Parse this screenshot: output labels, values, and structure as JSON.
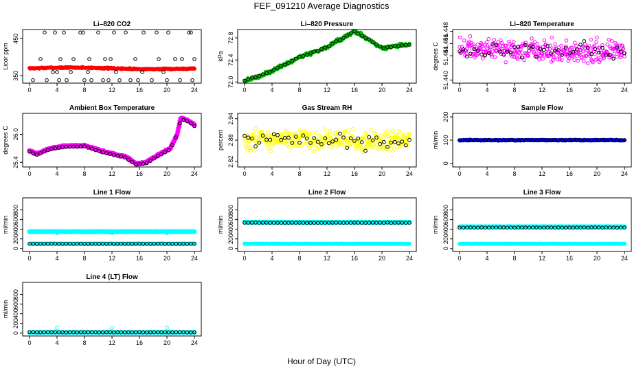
{
  "figure": {
    "title": "FEF_091210  Average Diagnostics",
    "xlabel": "Hour of Day (UTC)"
  },
  "chart_data": [
    {
      "type": "scatter",
      "title": "Li–820 CO2",
      "ylabel": "Licor ppm",
      "xlim": [
        0,
        24
      ],
      "xticks": [
        "0",
        "4",
        "8",
        "12",
        "16",
        "20",
        "24"
      ],
      "ylim": [
        330,
        475
      ],
      "yticks": [
        {
          "v": 350,
          "t": "350"
        },
        {
          "v": 450,
          "t": "450"
        }
      ],
      "series": [
        {
          "kind": "band",
          "color": "#ff0000",
          "base": 370,
          "amp": 2,
          "noise": 1.5,
          "n": 240,
          "size": 2.6
        },
        {
          "kind": "points",
          "color": "#000000",
          "marker": "open",
          "points": [
            [
              0.5,
              338
            ],
            [
              1.6,
              395
            ],
            [
              2.2,
              467
            ],
            [
              2.5,
              338
            ],
            [
              3.4,
              360
            ],
            [
              3.7,
              467
            ],
            [
              4.0,
              360
            ],
            [
              4.3,
              338
            ],
            [
              4.5,
              395
            ],
            [
              5.0,
              467
            ],
            [
              5.4,
              338
            ],
            [
              6.0,
              360
            ],
            [
              6.4,
              395
            ],
            [
              7.4,
              467
            ],
            [
              7.8,
              467
            ],
            [
              8.0,
              338
            ],
            [
              8.5,
              360
            ],
            [
              8.7,
              395
            ],
            [
              9.0,
              338
            ],
            [
              10.0,
              467
            ],
            [
              10.7,
              338
            ],
            [
              11.0,
              395
            ],
            [
              11.5,
              338
            ],
            [
              11.8,
              395
            ],
            [
              12.3,
              467
            ],
            [
              12.6,
              360
            ],
            [
              13.1,
              338
            ],
            [
              14.0,
              467
            ],
            [
              14.7,
              338
            ],
            [
              15.4,
              395
            ],
            [
              15.8,
              338
            ],
            [
              16.4,
              360
            ],
            [
              16.6,
              467
            ],
            [
              17.8,
              338
            ],
            [
              18.5,
              467
            ],
            [
              18.8,
              395
            ],
            [
              19.5,
              360
            ],
            [
              20.0,
              338
            ],
            [
              20.2,
              467
            ],
            [
              21.2,
              395
            ],
            [
              21.9,
              338
            ],
            [
              22.2,
              395
            ],
            [
              23.2,
              467
            ],
            [
              23.5,
              467
            ],
            [
              23.7,
              338
            ],
            [
              24.0,
              395
            ]
          ]
        }
      ]
    },
    {
      "type": "scatter",
      "title": "Li–820 Pressure",
      "ylabel": "kPa",
      "xlim": [
        0,
        24
      ],
      "xticks": [
        "0",
        "4",
        "8",
        "12",
        "16",
        "20",
        "24"
      ],
      "ylim": [
        71.98,
        72.95
      ],
      "yticks": [
        {
          "v": 72.0,
          "t": "72.0"
        },
        {
          "v": 72.4,
          "t": "72.4"
        },
        {
          "v": 72.8,
          "t": "72.8"
        }
      ],
      "series": [
        {
          "kind": "curve",
          "color": "#00bb00",
          "nodes": [
            [
              0,
              72.02
            ],
            [
              4,
              72.2
            ],
            [
              8,
              72.45
            ],
            [
              12,
              72.63
            ],
            [
              16,
              72.92
            ],
            [
              20,
              72.62
            ],
            [
              24,
              72.68
            ]
          ],
          "noise": 0.03,
          "n": 300,
          "size": 2.4
        },
        {
          "kind": "curve",
          "color": "#000000",
          "marker": "open",
          "nodes": [
            [
              0,
              72.02
            ],
            [
              4,
              72.2
            ],
            [
              8,
              72.45
            ],
            [
              12,
              72.63
            ],
            [
              16,
              72.92
            ],
            [
              20,
              72.62
            ],
            [
              24,
              72.68
            ]
          ],
          "noise": 0.01,
          "n": 46,
          "size": 2.3
        }
      ]
    },
    {
      "type": "scatter",
      "title": "Li–820 Temperature",
      "ylabel": "degrees C",
      "xlim": [
        0,
        24
      ],
      "xticks": [
        "0",
        "4",
        "8",
        "12",
        "16",
        "20",
        "24"
      ],
      "ylim": [
        51.4395,
        51.4483
      ],
      "yticks": [
        {
          "v": 51.44,
          "t": "51.440"
        },
        {
          "v": 51.444,
          "t": "51.444"
        },
        {
          "v": 51.446,
          "t": "51.446"
        },
        {
          "v": 51.448,
          "t": "51.448"
        }
      ],
      "series": [
        {
          "kind": "band",
          "color": "#ff00ff",
          "marker": "open",
          "base": 51.4448,
          "amp": 0.0003,
          "noise": 0.0017,
          "n": 330,
          "size": 2.3
        },
        {
          "kind": "band",
          "color": "#000000",
          "marker": "open",
          "base": 51.4448,
          "amp": 0.0002,
          "noise": 0.0012,
          "n": 46,
          "size": 2.3
        }
      ]
    },
    {
      "type": "scatter",
      "title": "Ambient Box Temperature",
      "ylabel": "degrees C",
      "xlim": [
        0,
        24
      ],
      "xticks": [
        "0",
        "4",
        "8",
        "12",
        "16",
        "20",
        "24"
      ],
      "ylim": [
        25.3,
        26.45
      ],
      "yticks": [
        {
          "v": 25.4,
          "t": "25.4"
        },
        {
          "v": 26.0,
          "t": "26.0"
        }
      ],
      "series": [
        {
          "kind": "curve",
          "color": "#ff00ff",
          "nodes": [
            [
              0,
              25.65
            ],
            [
              1,
              25.58
            ],
            [
              3,
              25.7
            ],
            [
              5,
              25.75
            ],
            [
              8,
              25.76
            ],
            [
              11,
              25.62
            ],
            [
              14,
              25.52
            ],
            [
              15.5,
              25.37
            ],
            [
              17,
              25.4
            ],
            [
              19,
              25.58
            ],
            [
              20.5,
              25.7
            ],
            [
              21.5,
              26.0
            ],
            [
              22,
              26.35
            ],
            [
              23,
              26.3
            ],
            [
              24,
              26.2
            ]
          ],
          "noise": 0.015,
          "n": 300,
          "size": 3.2
        },
        {
          "kind": "curve",
          "color": "#000000",
          "marker": "open",
          "nodes": [
            [
              0,
              25.63
            ],
            [
              1,
              25.56
            ],
            [
              3,
              25.68
            ],
            [
              5,
              25.73
            ],
            [
              8,
              25.74
            ],
            [
              11,
              25.6
            ],
            [
              14,
              25.5
            ],
            [
              15.5,
              25.35
            ],
            [
              17,
              25.38
            ],
            [
              19,
              25.56
            ],
            [
              20.5,
              25.68
            ],
            [
              21.5,
              25.98
            ],
            [
              22,
              26.33
            ],
            [
              23,
              26.28
            ],
            [
              24,
              26.18
            ]
          ],
          "noise": 0.004,
          "n": 46,
          "size": 2.4
        }
      ]
    },
    {
      "type": "scatter",
      "title": "Gas Stream RH",
      "ylabel": "percent",
      "xlim": [
        0,
        24
      ],
      "xticks": [
        "0",
        "4",
        "8",
        "12",
        "16",
        "20",
        "24"
      ],
      "ylim": [
        2.805,
        2.955
      ],
      "yticks": [
        {
          "v": 2.82,
          "t": "2.82"
        },
        {
          "v": 2.88,
          "t": "2.88"
        },
        {
          "v": 2.94,
          "t": "2.94"
        }
      ],
      "series": [
        {
          "kind": "band",
          "color": "#ffff00",
          "marker": "open",
          "base": 2.88,
          "amp": 0.004,
          "noise": 0.026,
          "n": 330,
          "size": 2.4
        },
        {
          "kind": "band",
          "color": "#000000",
          "marker": "open",
          "base": 2.88,
          "amp": 0.003,
          "noise": 0.02,
          "n": 46,
          "size": 2.4
        }
      ]
    },
    {
      "type": "scatter",
      "title": "Sample Flow",
      "ylabel": "ml/min",
      "xlim": [
        0,
        24
      ],
      "xticks": [
        "0",
        "4",
        "8",
        "12",
        "16",
        "20",
        "24"
      ],
      "ylim": [
        -15,
        215
      ],
      "yticks": [
        {
          "v": 0,
          "t": "0"
        },
        {
          "v": 100,
          "t": "100"
        },
        {
          "v": 200,
          "t": "200"
        }
      ],
      "series": [
        {
          "kind": "band",
          "color": "#0000ff",
          "base": 100,
          "amp": 0,
          "noise": 1.5,
          "n": 240,
          "size": 2.6
        },
        {
          "kind": "band",
          "color": "#000000",
          "marker": "open",
          "base": 100,
          "amp": 0,
          "noise": 1,
          "n": 46,
          "size": 2.3
        }
      ]
    },
    {
      "type": "scatter",
      "title": "Line 1 Flow",
      "ylabel": "ml/min",
      "xlim": [
        0,
        24
      ],
      "xticks": [
        "0",
        "4",
        "8",
        "12",
        "16",
        "20",
        "24"
      ],
      "ylim": [
        -60,
        1050
      ],
      "yticks": [
        {
          "v": 0,
          "t": "0"
        },
        {
          "v": 200,
          "t": "200"
        },
        {
          "v": 400,
          "t": "400"
        },
        {
          "v": 600,
          "t": "600"
        },
        {
          "v": 800,
          "t": "800"
        }
      ],
      "series": [
        {
          "kind": "band",
          "color": "#00ffff",
          "base": 350,
          "amp": 0,
          "noise": 4,
          "n": 240,
          "size": 3.2
        },
        {
          "kind": "points",
          "color": "#00ffff",
          "marker": "open",
          "points": [
            [
              4,
              320
            ],
            [
              12,
              320
            ],
            [
              20,
              320
            ]
          ]
        },
        {
          "kind": "band",
          "color": "#00ffff",
          "base": 100,
          "amp": 0,
          "noise": 2,
          "n": 200,
          "size": 2.8
        },
        {
          "kind": "band",
          "color": "#000000",
          "marker": "open",
          "base": 100,
          "amp": 0,
          "noise": 2,
          "n": 46,
          "size": 2.3
        }
      ]
    },
    {
      "type": "scatter",
      "title": "Line 2 Flow",
      "ylabel": "ml/min",
      "xlim": [
        0,
        24
      ],
      "xticks": [
        "0",
        "4",
        "8",
        "12",
        "16",
        "20",
        "24"
      ],
      "ylim": [
        -60,
        1050
      ],
      "yticks": [
        {
          "v": 0,
          "t": "0"
        },
        {
          "v": 200,
          "t": "200"
        },
        {
          "v": 400,
          "t": "400"
        },
        {
          "v": 600,
          "t": "600"
        },
        {
          "v": 800,
          "t": "800"
        }
      ],
      "series": [
        {
          "kind": "band",
          "color": "#00ffff",
          "base": 545,
          "amp": 0,
          "noise": 4,
          "n": 240,
          "size": 3.2
        },
        {
          "kind": "band",
          "color": "#00ffff",
          "base": 100,
          "amp": 0,
          "noise": 2,
          "n": 240,
          "size": 2.6
        },
        {
          "kind": "band",
          "color": "#000000",
          "marker": "open",
          "base": 535,
          "amp": 0,
          "noise": 3,
          "n": 46,
          "size": 2.3
        }
      ]
    },
    {
      "type": "scatter",
      "title": "Line 3 Flow",
      "ylabel": "ml/min",
      "xlim": [
        0,
        24
      ],
      "xticks": [
        "0",
        "4",
        "8",
        "12",
        "16",
        "20",
        "24"
      ],
      "ylim": [
        -60,
        1050
      ],
      "yticks": [
        {
          "v": 0,
          "t": "0"
        },
        {
          "v": 200,
          "t": "200"
        },
        {
          "v": 400,
          "t": "400"
        },
        {
          "v": 600,
          "t": "600"
        },
        {
          "v": 800,
          "t": "800"
        }
      ],
      "series": [
        {
          "kind": "band",
          "color": "#00ffff",
          "base": 450,
          "amp": 0,
          "noise": 4,
          "n": 240,
          "size": 3.2
        },
        {
          "kind": "band",
          "color": "#00ffff",
          "base": 100,
          "amp": 0,
          "noise": 2,
          "n": 240,
          "size": 2.6
        },
        {
          "kind": "band",
          "color": "#000000",
          "marker": "open",
          "base": 435,
          "amp": 0,
          "noise": 3,
          "n": 46,
          "size": 2.3
        }
      ]
    },
    {
      "type": "scatter",
      "title": "Line 4 (LT) Flow",
      "ylabel": "ml/min",
      "xlim": [
        0,
        24
      ],
      "xticks": [
        "0",
        "4",
        "8",
        "12",
        "16",
        "20",
        "24"
      ],
      "ylim": [
        -60,
        1050
      ],
      "yticks": [
        {
          "v": 0,
          "t": "0"
        },
        {
          "v": 200,
          "t": "200"
        },
        {
          "v": 400,
          "t": "400"
        },
        {
          "v": 600,
          "t": "600"
        },
        {
          "v": 800,
          "t": "800"
        }
      ],
      "series": [
        {
          "kind": "band",
          "color": "#00ffff",
          "base": 15,
          "amp": 0,
          "noise": 2,
          "n": 240,
          "size": 3
        },
        {
          "kind": "points",
          "color": "#00ffff",
          "marker": "open",
          "points": [
            [
              4,
              110
            ],
            [
              12,
              110
            ],
            [
              20,
              110
            ]
          ]
        },
        {
          "kind": "band",
          "color": "#000000",
          "marker": "open",
          "base": 15,
          "amp": 0,
          "noise": 2,
          "n": 46,
          "size": 2.3
        }
      ]
    }
  ]
}
